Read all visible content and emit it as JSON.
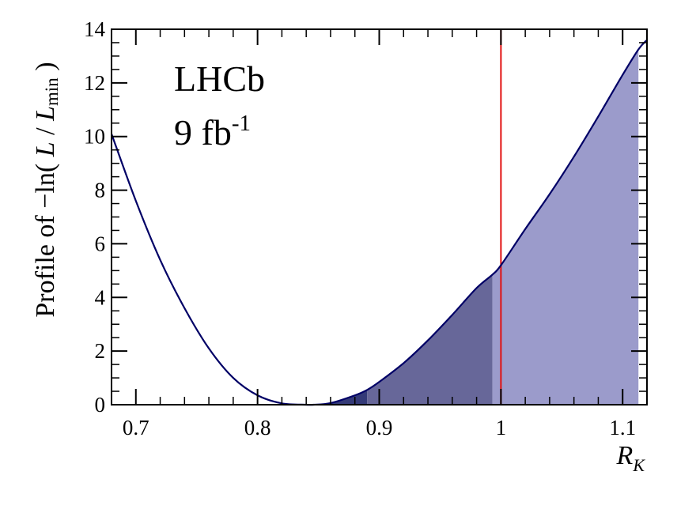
{
  "chart_data": {
    "type": "line",
    "title": "",
    "xlabel": {
      "main": "R",
      "sub": "K"
    },
    "ylabel": {
      "prefix": "Profile of −ln( ",
      "L1": "L",
      "slash": " / ",
      "L2": "L",
      "sub": "min",
      "suffix": " )"
    },
    "xlim": [
      0.68,
      1.12
    ],
    "ylim": [
      0,
      14
    ],
    "x_ticks": [
      {
        "value": 0.7,
        "label": "0.7"
      },
      {
        "value": 0.8,
        "label": "0.8"
      },
      {
        "value": 0.9,
        "label": "0.9"
      },
      {
        "value": 1.0,
        "label": "1"
      },
      {
        "value": 1.1,
        "label": "1.1"
      }
    ],
    "y_ticks": [
      {
        "value": 0,
        "label": "0"
      },
      {
        "value": 2,
        "label": "2"
      },
      {
        "value": 4,
        "label": "4"
      },
      {
        "value": 6,
        "label": "6"
      },
      {
        "value": 8,
        "label": "8"
      },
      {
        "value": 10,
        "label": "10"
      },
      {
        "value": 12,
        "label": "12"
      },
      {
        "value": 14,
        "label": "14"
      }
    ],
    "x_minor_step": 0.02,
    "y_minor_step": 0.5,
    "grid": false,
    "annotations": {
      "experiment": "LHCb",
      "lumi_main": "9 fb",
      "lumi_sup": "-1"
    },
    "series": [
      {
        "x": [
          0.68,
          0.7,
          0.72,
          0.74,
          0.76,
          0.78,
          0.8,
          0.82,
          0.84,
          0.846,
          0.86,
          0.88,
          0.89,
          0.9,
          0.92,
          0.94,
          0.96,
          0.98,
          0.993,
          1.0,
          1.02,
          1.04,
          1.06,
          1.08,
          1.1,
          1.113,
          1.12
        ],
        "y": [
          10.1,
          7.6,
          5.4,
          3.6,
          2.1,
          1.0,
          0.35,
          0.05,
          0.0,
          0.0,
          0.06,
          0.35,
          0.55,
          0.85,
          1.55,
          2.4,
          3.35,
          4.35,
          4.85,
          5.2,
          6.55,
          7.85,
          9.25,
          10.75,
          12.3,
          13.25,
          13.6
        ],
        "color": "#000066"
      }
    ],
    "bands": [
      {
        "x_from": 0.846,
        "x_to": 0.89,
        "color": "#343a78"
      },
      {
        "x_from": 0.89,
        "x_to": 0.993,
        "color": "#676799"
      },
      {
        "x_from": 0.993,
        "x_to": 1.113,
        "color": "#9b9bcb"
      }
    ],
    "reference_line": {
      "x": 1.0,
      "color": "#e01010"
    }
  }
}
